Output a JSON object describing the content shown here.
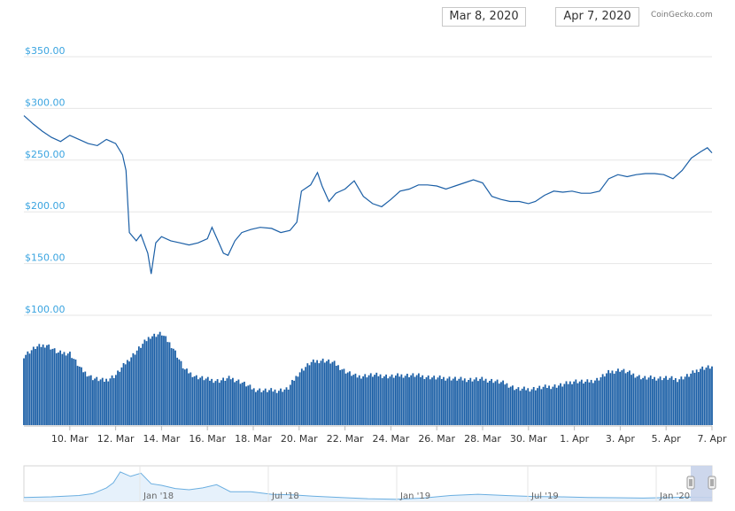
{
  "header": {
    "date_from": "Mar 8, 2020",
    "date_to": "Apr 7, 2020",
    "credit": "CoinGecko.com"
  },
  "colors": {
    "price_line": "#1b5fa6",
    "volume_fill": "#1b5fa6",
    "grid": "#e6e6e6",
    "y_labels": "#3aa4e0",
    "navigator_line": "#6aaee0",
    "navigator_fill": "#e6f1fb",
    "navigator_selection": "#c8d3ea"
  },
  "chart_data": {
    "type": "line",
    "title": "",
    "xlabel": "",
    "ylabel": "",
    "ylim": [
      100,
      350
    ],
    "y_ticks": [
      "$100.00",
      "$150.00",
      "$200.00",
      "$250.00",
      "$300.00",
      "$350.00"
    ],
    "y_tick_values": [
      100,
      150,
      200,
      250,
      300,
      350
    ],
    "x_ticks": [
      "10. Mar",
      "12. Mar",
      "14. Mar",
      "16. Mar",
      "18. Mar",
      "20. Mar",
      "22. Mar",
      "24. Mar",
      "26. Mar",
      "28. Mar",
      "30. Mar",
      "1. Apr",
      "3. Apr",
      "5. Apr",
      "7. Apr"
    ],
    "x_tick_days": [
      2,
      4,
      6,
      8,
      10,
      12,
      14,
      16,
      18,
      20,
      22,
      24,
      26,
      28,
      30
    ],
    "grid": true,
    "series": [
      {
        "type": "line",
        "x_days_since": "Mar 8, 2020",
        "points": [
          [
            0,
            293
          ],
          [
            0.4,
            285
          ],
          [
            0.8,
            278
          ],
          [
            1.2,
            272
          ],
          [
            1.6,
            268
          ],
          [
            2.0,
            274
          ],
          [
            2.4,
            270
          ],
          [
            2.8,
            266
          ],
          [
            3.2,
            264
          ],
          [
            3.6,
            270
          ],
          [
            4.0,
            266
          ],
          [
            4.3,
            255
          ],
          [
            4.45,
            240
          ],
          [
            4.6,
            180
          ],
          [
            4.9,
            172
          ],
          [
            5.1,
            178
          ],
          [
            5.4,
            160
          ],
          [
            5.55,
            140
          ],
          [
            5.75,
            170
          ],
          [
            6.0,
            176
          ],
          [
            6.4,
            172
          ],
          [
            6.8,
            170
          ],
          [
            7.2,
            168
          ],
          [
            7.6,
            170
          ],
          [
            8.0,
            174
          ],
          [
            8.2,
            185
          ],
          [
            8.5,
            170
          ],
          [
            8.7,
            160
          ],
          [
            8.9,
            158
          ],
          [
            9.2,
            172
          ],
          [
            9.5,
            180
          ],
          [
            9.9,
            183
          ],
          [
            10.3,
            185
          ],
          [
            10.8,
            184
          ],
          [
            11.2,
            180
          ],
          [
            11.6,
            182
          ],
          [
            11.9,
            190
          ],
          [
            12.1,
            220
          ],
          [
            12.5,
            226
          ],
          [
            12.8,
            238
          ],
          [
            13.0,
            225
          ],
          [
            13.3,
            210
          ],
          [
            13.6,
            218
          ],
          [
            14.0,
            222
          ],
          [
            14.4,
            230
          ],
          [
            14.8,
            215
          ],
          [
            15.2,
            208
          ],
          [
            15.6,
            205
          ],
          [
            16.0,
            212
          ],
          [
            16.4,
            220
          ],
          [
            16.8,
            222
          ],
          [
            17.2,
            226
          ],
          [
            17.6,
            226
          ],
          [
            18.0,
            225
          ],
          [
            18.4,
            222
          ],
          [
            18.8,
            225
          ],
          [
            19.2,
            228
          ],
          [
            19.6,
            231
          ],
          [
            20.0,
            228
          ],
          [
            20.4,
            215
          ],
          [
            20.8,
            212
          ],
          [
            21.2,
            210
          ],
          [
            21.6,
            210
          ],
          [
            22.0,
            208
          ],
          [
            22.3,
            210
          ],
          [
            22.7,
            216
          ],
          [
            23.1,
            220
          ],
          [
            23.5,
            219
          ],
          [
            23.9,
            220
          ],
          [
            24.3,
            218
          ],
          [
            24.7,
            218
          ],
          [
            25.1,
            220
          ],
          [
            25.5,
            232
          ],
          [
            25.9,
            236
          ],
          [
            26.3,
            234
          ],
          [
            26.7,
            236
          ],
          [
            27.1,
            237
          ],
          [
            27.5,
            237
          ],
          [
            27.9,
            236
          ],
          [
            28.3,
            232
          ],
          [
            28.7,
            240
          ],
          [
            29.1,
            252
          ],
          [
            29.5,
            258
          ],
          [
            29.8,
            262
          ],
          [
            30.0,
            257
          ]
        ]
      },
      {
        "type": "volume",
        "note": "relative trading volume, 0 to 1",
        "points": [
          [
            0,
            0.5
          ],
          [
            0.5,
            0.56
          ],
          [
            1.0,
            0.58
          ],
          [
            1.5,
            0.52
          ],
          [
            2.0,
            0.52
          ],
          [
            2.5,
            0.4
          ],
          [
            3.0,
            0.34
          ],
          [
            3.5,
            0.32
          ],
          [
            4.0,
            0.36
          ],
          [
            4.5,
            0.46
          ],
          [
            5.0,
            0.55
          ],
          [
            5.5,
            0.64
          ],
          [
            6.0,
            0.66
          ],
          [
            6.5,
            0.56
          ],
          [
            7.0,
            0.4
          ],
          [
            7.5,
            0.35
          ],
          [
            8.0,
            0.33
          ],
          [
            8.5,
            0.32
          ],
          [
            9.0,
            0.34
          ],
          [
            9.5,
            0.31
          ],
          [
            10.0,
            0.26
          ],
          [
            10.5,
            0.25
          ],
          [
            11.0,
            0.25
          ],
          [
            11.5,
            0.26
          ],
          [
            12.0,
            0.38
          ],
          [
            12.5,
            0.45
          ],
          [
            13.0,
            0.47
          ],
          [
            13.5,
            0.45
          ],
          [
            14.0,
            0.39
          ],
          [
            14.5,
            0.35
          ],
          [
            15.0,
            0.36
          ],
          [
            15.5,
            0.36
          ],
          [
            16.0,
            0.35
          ],
          [
            16.5,
            0.36
          ],
          [
            17.0,
            0.36
          ],
          [
            17.5,
            0.35
          ],
          [
            18.0,
            0.34
          ],
          [
            18.5,
            0.34
          ],
          [
            19.0,
            0.33
          ],
          [
            19.5,
            0.33
          ],
          [
            20.0,
            0.33
          ],
          [
            20.5,
            0.32
          ],
          [
            21.0,
            0.3
          ],
          [
            21.5,
            0.26
          ],
          [
            22.0,
            0.26
          ],
          [
            22.5,
            0.27
          ],
          [
            23.0,
            0.28
          ],
          [
            23.5,
            0.29
          ],
          [
            24.0,
            0.32
          ],
          [
            24.5,
            0.31
          ],
          [
            25.0,
            0.33
          ],
          [
            25.5,
            0.38
          ],
          [
            26.0,
            0.4
          ],
          [
            26.5,
            0.37
          ],
          [
            27.0,
            0.34
          ],
          [
            27.5,
            0.34
          ],
          [
            28.0,
            0.34
          ],
          [
            28.5,
            0.33
          ],
          [
            29.0,
            0.36
          ],
          [
            29.5,
            0.41
          ],
          [
            30.0,
            0.42
          ]
        ]
      }
    ]
  },
  "navigator": {
    "labels": [
      "Jan '18",
      "Jul '18",
      "Jan '19",
      "Jul '19",
      "Jan '20"
    ],
    "series_points": [
      [
        0,
        0.12
      ],
      [
        0.04,
        0.14
      ],
      [
        0.08,
        0.18
      ],
      [
        0.1,
        0.24
      ],
      [
        0.12,
        0.42
      ],
      [
        0.13,
        0.58
      ],
      [
        0.14,
        0.92
      ],
      [
        0.155,
        0.78
      ],
      [
        0.17,
        0.88
      ],
      [
        0.185,
        0.55
      ],
      [
        0.2,
        0.5
      ],
      [
        0.22,
        0.4
      ],
      [
        0.24,
        0.36
      ],
      [
        0.26,
        0.42
      ],
      [
        0.28,
        0.52
      ],
      [
        0.3,
        0.3
      ],
      [
        0.33,
        0.3
      ],
      [
        0.36,
        0.22
      ],
      [
        0.39,
        0.2
      ],
      [
        0.42,
        0.16
      ],
      [
        0.46,
        0.12
      ],
      [
        0.5,
        0.08
      ],
      [
        0.54,
        0.06
      ],
      [
        0.58,
        0.1
      ],
      [
        0.62,
        0.18
      ],
      [
        0.66,
        0.22
      ],
      [
        0.7,
        0.18
      ],
      [
        0.74,
        0.15
      ],
      [
        0.78,
        0.14
      ],
      [
        0.82,
        0.12
      ],
      [
        0.86,
        0.11
      ],
      [
        0.9,
        0.1
      ],
      [
        0.94,
        0.12
      ],
      [
        0.97,
        0.13
      ],
      [
        1.0,
        0.12
      ]
    ]
  }
}
